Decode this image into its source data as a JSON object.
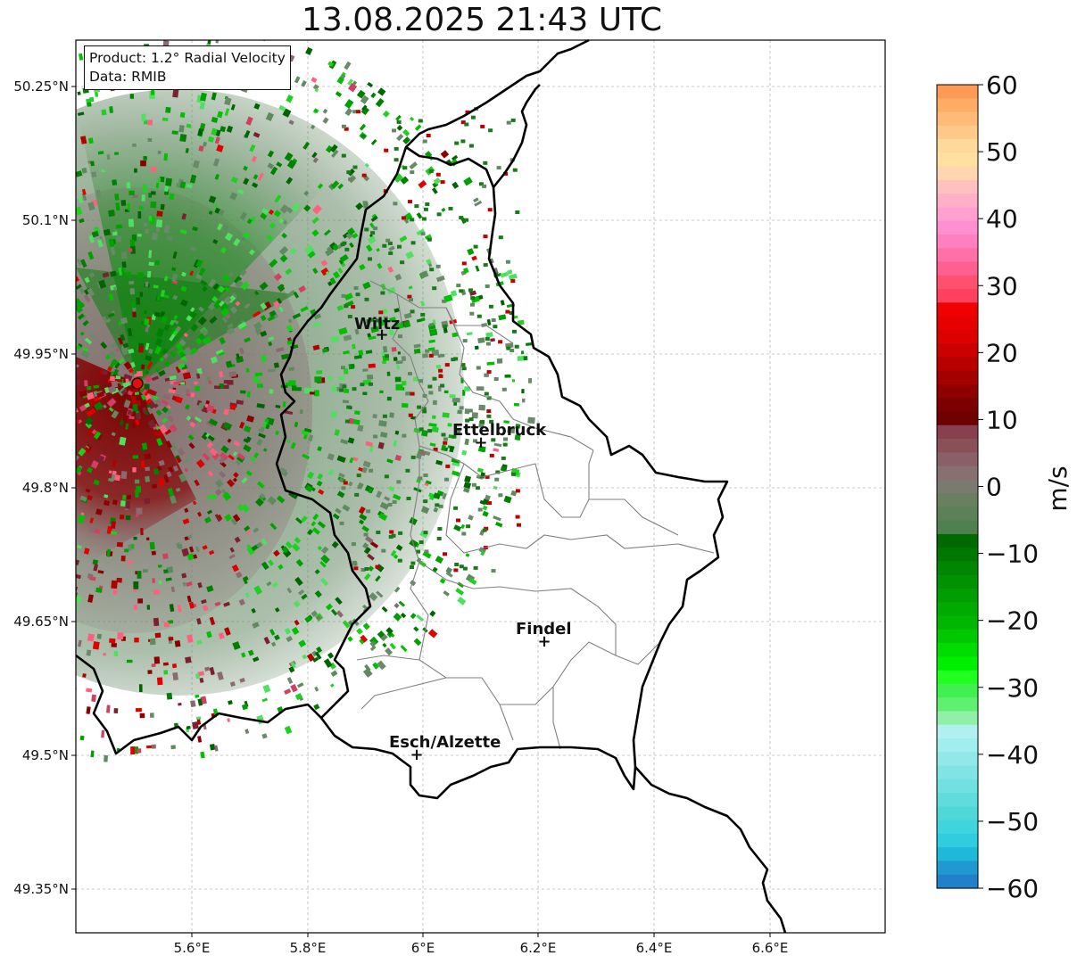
{
  "title": "13.08.2025 21:43 UTC",
  "info": {
    "product": "Product: 1.2° Radial Velocity",
    "data": "Data: RMIB"
  },
  "map": {
    "lon_ticks": [
      "5.6°E",
      "5.8°E",
      "6°E",
      "6.2°E",
      "6.4°E",
      "6.6°E"
    ],
    "lat_ticks": [
      "50.25°N",
      "50.1°N",
      "49.95°N",
      "49.8°N",
      "49.65°N",
      "49.5°N",
      "49.35°N"
    ],
    "cities": [
      {
        "name": "Wiltz"
      },
      {
        "name": "Ettelbruck"
      },
      {
        "name": "Findel"
      },
      {
        "name": "Esch/Alzette"
      }
    ],
    "radar_site": "radar-site"
  },
  "colorbar": {
    "label": "m/s",
    "ticks": [
      "60",
      "50",
      "40",
      "30",
      "20",
      "10",
      "0",
      "−10",
      "−20",
      "−30",
      "−40",
      "−50",
      "−60"
    ],
    "range": [
      -60,
      60
    ]
  }
}
